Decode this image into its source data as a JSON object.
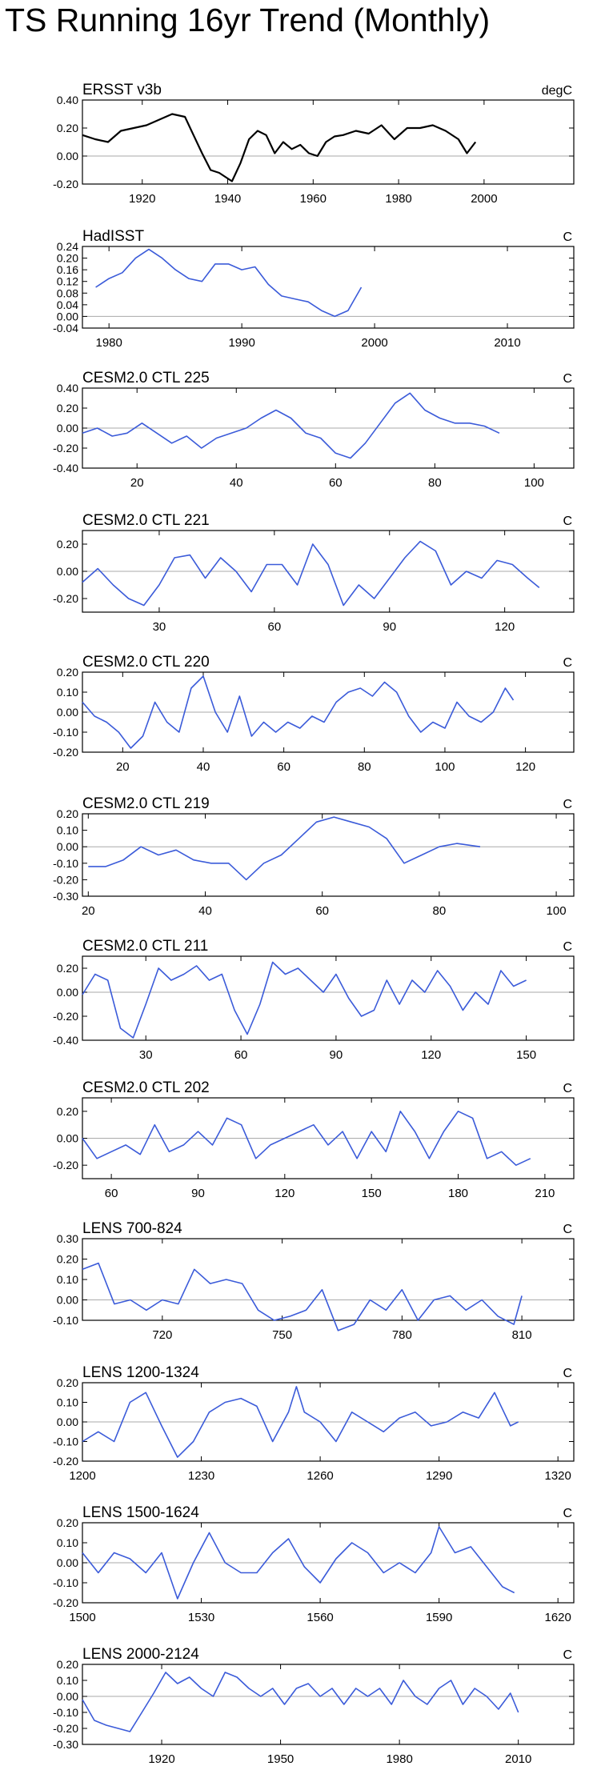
{
  "page": {
    "title": "TS Running 16yr Trend (Monthly)"
  },
  "chart_data": [
    {
      "type": "line",
      "title": "ERSST v3b",
      "units": "degC",
      "color": "#000000",
      "xlim": [
        1906,
        2021
      ],
      "ylim": [
        -0.2,
        0.4
      ],
      "xticks": [
        1920,
        1940,
        1960,
        1980,
        2000
      ],
      "yticks": [
        "-0.20",
        "0.00",
        "0.20",
        "0.40"
      ],
      "x": [
        1906,
        1909,
        1912,
        1915,
        1918,
        1921,
        1924,
        1927,
        1930,
        1932,
        1934,
        1936,
        1938,
        1940,
        1941,
        1943,
        1945,
        1947,
        1949,
        1951,
        1953,
        1955,
        1957,
        1959,
        1961,
        1963,
        1965,
        1967,
        1970,
        1973,
        1976,
        1979,
        1982,
        1985,
        1988,
        1991,
        1994,
        1996,
        1998
      ],
      "values": [
        0.15,
        0.12,
        0.1,
        0.18,
        0.2,
        0.22,
        0.26,
        0.3,
        0.28,
        0.15,
        0.02,
        -0.1,
        -0.12,
        -0.16,
        -0.18,
        -0.05,
        0.12,
        0.18,
        0.15,
        0.02,
        0.1,
        0.05,
        0.08,
        0.02,
        0.0,
        0.1,
        0.14,
        0.15,
        0.18,
        0.16,
        0.22,
        0.12,
        0.2,
        0.2,
        0.22,
        0.18,
        0.12,
        0.02,
        0.1
      ]
    },
    {
      "type": "line",
      "title": "HadISST",
      "units": "C",
      "color": "#3b5bd9",
      "xlim": [
        1978,
        2015
      ],
      "ylim": [
        -0.04,
        0.24
      ],
      "xticks": [
        1980,
        1990,
        2000,
        2010
      ],
      "yticks": [
        "-0.04",
        "0.00",
        "0.04",
        "0.08",
        "0.12",
        "0.16",
        "0.20",
        "0.24"
      ],
      "x": [
        1979,
        1980,
        1981,
        1982,
        1983,
        1984,
        1985,
        1986,
        1987,
        1988,
        1989,
        1990,
        1991,
        1992,
        1993,
        1994,
        1995,
        1996,
        1997,
        1998,
        1999
      ],
      "values": [
        0.1,
        0.13,
        0.15,
        0.2,
        0.23,
        0.2,
        0.16,
        0.13,
        0.12,
        0.18,
        0.18,
        0.16,
        0.17,
        0.11,
        0.07,
        0.06,
        0.05,
        0.02,
        0.0,
        0.02,
        0.1
      ]
    },
    {
      "type": "line",
      "title": "CESM2.0 CTL 225",
      "units": "C",
      "color": "#3b5bd9",
      "xlim": [
        9,
        108
      ],
      "ylim": [
        -0.4,
        0.4
      ],
      "xticks": [
        20,
        40,
        60,
        80,
        100
      ],
      "yticks": [
        "-0.40",
        "-0.20",
        "0.00",
        "0.20",
        "0.40"
      ],
      "x": [
        9,
        12,
        15,
        18,
        21,
        24,
        27,
        30,
        33,
        36,
        39,
        42,
        45,
        48,
        51,
        54,
        57,
        60,
        63,
        66,
        69,
        72,
        75,
        78,
        81,
        84,
        87,
        90,
        93
      ],
      "values": [
        -0.05,
        0.0,
        -0.08,
        -0.05,
        0.05,
        -0.05,
        -0.15,
        -0.08,
        -0.2,
        -0.1,
        -0.05,
        0.0,
        0.1,
        0.18,
        0.1,
        -0.05,
        -0.1,
        -0.25,
        -0.3,
        -0.15,
        0.05,
        0.25,
        0.35,
        0.18,
        0.1,
        0.05,
        0.05,
        0.02,
        -0.05
      ]
    },
    {
      "type": "line",
      "title": "CESM2.0 CTL 221",
      "units": "C",
      "color": "#3b5bd9",
      "xlim": [
        10,
        138
      ],
      "ylim": [
        -0.3,
        0.3
      ],
      "xticks": [
        30,
        60,
        90,
        120
      ],
      "yticks": [
        "-0.20",
        "0.00",
        "0.20"
      ],
      "x": [
        10,
        14,
        18,
        22,
        26,
        30,
        34,
        38,
        42,
        46,
        50,
        54,
        58,
        62,
        66,
        70,
        74,
        78,
        82,
        86,
        90,
        94,
        98,
        102,
        106,
        110,
        114,
        118,
        122,
        126,
        129
      ],
      "values": [
        -0.08,
        0.02,
        -0.1,
        -0.2,
        -0.25,
        -0.1,
        0.1,
        0.12,
        -0.05,
        0.1,
        0.0,
        -0.15,
        0.05,
        0.05,
        -0.1,
        0.2,
        0.05,
        -0.25,
        -0.1,
        -0.2,
        -0.05,
        0.1,
        0.22,
        0.15,
        -0.1,
        0.0,
        -0.05,
        0.08,
        0.05,
        -0.05,
        -0.12
      ]
    },
    {
      "type": "line",
      "title": "CESM2.0 CTL 220",
      "units": "C",
      "color": "#3b5bd9",
      "xlim": [
        10,
        132
      ],
      "ylim": [
        -0.2,
        0.2
      ],
      "xticks": [
        20,
        40,
        60,
        80,
        100,
        120
      ],
      "yticks": [
        "-0.20",
        "-0.10",
        "0.00",
        "0.10",
        "0.20"
      ],
      "x": [
        10,
        13,
        16,
        19,
        22,
        25,
        28,
        31,
        34,
        37,
        40,
        43,
        46,
        49,
        52,
        55,
        58,
        61,
        64,
        67,
        70,
        73,
        76,
        79,
        82,
        85,
        88,
        91,
        94,
        97,
        100,
        103,
        106,
        109,
        112,
        115,
        117
      ],
      "values": [
        0.05,
        -0.02,
        -0.05,
        -0.1,
        -0.18,
        -0.12,
        0.05,
        -0.05,
        -0.1,
        0.12,
        0.18,
        0.0,
        -0.1,
        0.08,
        -0.12,
        -0.05,
        -0.1,
        -0.05,
        -0.08,
        -0.02,
        -0.05,
        0.05,
        0.1,
        0.12,
        0.08,
        0.15,
        0.1,
        -0.02,
        -0.1,
        -0.05,
        -0.08,
        0.05,
        -0.02,
        -0.05,
        0.0,
        0.12,
        0.06
      ]
    },
    {
      "type": "line",
      "title": "CESM2.0 CTL 219",
      "units": "C",
      "color": "#3b5bd9",
      "xlim": [
        19,
        103
      ],
      "ylim": [
        -0.3,
        0.2
      ],
      "xticks": [
        20,
        40,
        60,
        80,
        100
      ],
      "yticks": [
        "-0.30",
        "-0.20",
        "-0.10",
        "0.00",
        "0.10",
        "0.20"
      ],
      "x": [
        20,
        23,
        26,
        29,
        32,
        35,
        38,
        41,
        44,
        47,
        50,
        53,
        56,
        59,
        62,
        65,
        68,
        71,
        74,
        77,
        80,
        83,
        87
      ],
      "values": [
        -0.12,
        -0.12,
        -0.08,
        0.0,
        -0.05,
        -0.02,
        -0.08,
        -0.1,
        -0.1,
        -0.2,
        -0.1,
        -0.05,
        0.05,
        0.15,
        0.18,
        0.15,
        0.12,
        0.05,
        -0.1,
        -0.05,
        0.0,
        0.02,
        0.0
      ]
    },
    {
      "type": "line",
      "title": "CESM2.0 CTL 211",
      "units": "C",
      "color": "#3b5bd9",
      "xlim": [
        10,
        165
      ],
      "ylim": [
        -0.4,
        0.3
      ],
      "xticks": [
        30,
        60,
        90,
        120,
        150
      ],
      "yticks": [
        "-0.40",
        "-0.20",
        "0.00",
        "0.20"
      ],
      "x": [
        10,
        14,
        18,
        22,
        26,
        30,
        34,
        38,
        42,
        46,
        50,
        54,
        58,
        62,
        66,
        70,
        74,
        78,
        82,
        86,
        90,
        94,
        98,
        102,
        106,
        110,
        114,
        118,
        122,
        126,
        130,
        134,
        138,
        142,
        146,
        150
      ],
      "values": [
        -0.02,
        0.15,
        0.1,
        -0.3,
        -0.38,
        -0.1,
        0.2,
        0.1,
        0.15,
        0.22,
        0.1,
        0.15,
        -0.15,
        -0.35,
        -0.1,
        0.25,
        0.15,
        0.2,
        0.1,
        0.0,
        0.15,
        -0.05,
        -0.2,
        -0.15,
        0.1,
        -0.1,
        0.1,
        0.0,
        0.18,
        0.05,
        -0.15,
        0.0,
        -0.1,
        0.18,
        0.05,
        0.1
      ]
    },
    {
      "type": "line",
      "title": "CESM2.0 CTL 202",
      "units": "C",
      "color": "#3b5bd9",
      "xlim": [
        50,
        220
      ],
      "ylim": [
        -0.3,
        0.3
      ],
      "xticks": [
        60,
        90,
        120,
        150,
        180,
        210
      ],
      "yticks": [
        "-0.20",
        "0.00",
        "0.20"
      ],
      "x": [
        50,
        55,
        60,
        65,
        70,
        75,
        80,
        85,
        90,
        95,
        100,
        105,
        110,
        115,
        120,
        125,
        130,
        135,
        140,
        145,
        150,
        155,
        160,
        165,
        170,
        175,
        180,
        185,
        190,
        195,
        200,
        205
      ],
      "values": [
        0.0,
        -0.15,
        -0.1,
        -0.05,
        -0.12,
        0.1,
        -0.1,
        -0.05,
        0.05,
        -0.05,
        0.15,
        0.1,
        -0.15,
        -0.05,
        0.0,
        0.05,
        0.1,
        -0.05,
        0.05,
        -0.15,
        0.05,
        -0.1,
        0.2,
        0.05,
        -0.15,
        0.05,
        0.2,
        0.15,
        -0.15,
        -0.1,
        -0.2,
        -0.15
      ]
    },
    {
      "type": "line",
      "title": "LENS 700-824",
      "units": "C",
      "color": "#3b5bd9",
      "xlim": [
        700,
        823
      ],
      "ylim": [
        -0.1,
        0.3
      ],
      "xticks": [
        720,
        750,
        780,
        810
      ],
      "yticks": [
        "-0.10",
        "0.00",
        "0.10",
        "0.20",
        "0.30"
      ],
      "x": [
        700,
        704,
        708,
        712,
        716,
        720,
        724,
        728,
        732,
        736,
        740,
        744,
        748,
        752,
        756,
        760,
        764,
        768,
        772,
        776,
        780,
        784,
        788,
        792,
        796,
        800,
        804,
        808,
        810
      ],
      "values": [
        0.15,
        0.18,
        -0.02,
        0.0,
        -0.05,
        0.0,
        -0.02,
        0.15,
        0.08,
        0.1,
        0.08,
        -0.05,
        -0.1,
        -0.08,
        -0.05,
        0.05,
        -0.15,
        -0.12,
        0.0,
        -0.05,
        0.05,
        -0.1,
        0.0,
        0.02,
        -0.05,
        0.0,
        -0.08,
        -0.12,
        0.02
      ]
    },
    {
      "type": "line",
      "title": "LENS 1200-1324",
      "units": "C",
      "color": "#3b5bd9",
      "xlim": [
        1200,
        1324
      ],
      "ylim": [
        -0.2,
        0.2
      ],
      "xticks": [
        1200,
        1230,
        1260,
        1290,
        1320
      ],
      "yticks": [
        "-0.20",
        "-0.10",
        "0.00",
        "0.10",
        "0.20"
      ],
      "x": [
        1200,
        1204,
        1208,
        1212,
        1216,
        1220,
        1224,
        1228,
        1232,
        1236,
        1240,
        1244,
        1248,
        1252,
        1254,
        1256,
        1260,
        1264,
        1268,
        1272,
        1276,
        1280,
        1284,
        1288,
        1292,
        1296,
        1300,
        1304,
        1308,
        1310
      ],
      "values": [
        -0.1,
        -0.05,
        -0.1,
        0.1,
        0.15,
        -0.02,
        -0.18,
        -0.1,
        0.05,
        0.1,
        0.12,
        0.08,
        -0.1,
        0.05,
        0.18,
        0.05,
        0.0,
        -0.1,
        0.05,
        0.0,
        -0.05,
        0.02,
        0.05,
        -0.02,
        0.0,
        0.05,
        0.02,
        0.15,
        -0.02,
        0.0
      ]
    },
    {
      "type": "line",
      "title": "LENS 1500-1624",
      "units": "C",
      "color": "#3b5bd9",
      "xlim": [
        1500,
        1624
      ],
      "ylim": [
        -0.2,
        0.2
      ],
      "xticks": [
        1500,
        1530,
        1560,
        1590,
        1620
      ],
      "yticks": [
        "-0.20",
        "-0.10",
        "0.00",
        "0.10",
        "0.20"
      ],
      "x": [
        1500,
        1504,
        1508,
        1512,
        1516,
        1520,
        1524,
        1528,
        1532,
        1536,
        1540,
        1544,
        1548,
        1552,
        1556,
        1560,
        1564,
        1568,
        1572,
        1576,
        1580,
        1584,
        1588,
        1590,
        1594,
        1598,
        1602,
        1606,
        1609
      ],
      "values": [
        0.05,
        -0.05,
        0.05,
        0.02,
        -0.05,
        0.05,
        -0.18,
        0.0,
        0.15,
        0.0,
        -0.05,
        -0.05,
        0.05,
        0.12,
        -0.02,
        -0.1,
        0.02,
        0.1,
        0.05,
        -0.05,
        0.0,
        -0.05,
        0.05,
        0.18,
        0.05,
        0.08,
        -0.02,
        -0.12,
        -0.15
      ]
    },
    {
      "type": "line",
      "title": "LENS 2000-2124",
      "units": "C",
      "color": "#3b5bd9",
      "xlim": [
        1900,
        2024
      ],
      "ylim": [
        -0.3,
        0.2
      ],
      "xticks": [
        1920,
        1950,
        1980,
        2010
      ],
      "yticks": [
        "-0.30",
        "-0.20",
        "-0.10",
        "0.00",
        "0.10",
        "0.20"
      ],
      "x": [
        1900,
        1903,
        1906,
        1909,
        1912,
        1915,
        1918,
        1921,
        1924,
        1927,
        1930,
        1933,
        1936,
        1939,
        1942,
        1945,
        1948,
        1951,
        1954,
        1957,
        1960,
        1963,
        1966,
        1969,
        1972,
        1975,
        1978,
        1981,
        1984,
        1987,
        1990,
        1993,
        1996,
        1999,
        2002,
        2005,
        2008,
        2010
      ],
      "values": [
        -0.02,
        -0.15,
        -0.18,
        -0.2,
        -0.22,
        -0.1,
        0.02,
        0.15,
        0.08,
        0.12,
        0.05,
        0.0,
        0.15,
        0.12,
        0.05,
        0.0,
        0.05,
        -0.05,
        0.05,
        0.08,
        0.0,
        0.05,
        -0.05,
        0.05,
        0.0,
        0.05,
        -0.05,
        0.1,
        0.0,
        -0.05,
        0.05,
        0.1,
        -0.05,
        0.05,
        0.0,
        -0.08,
        0.02,
        -0.1
      ]
    }
  ]
}
